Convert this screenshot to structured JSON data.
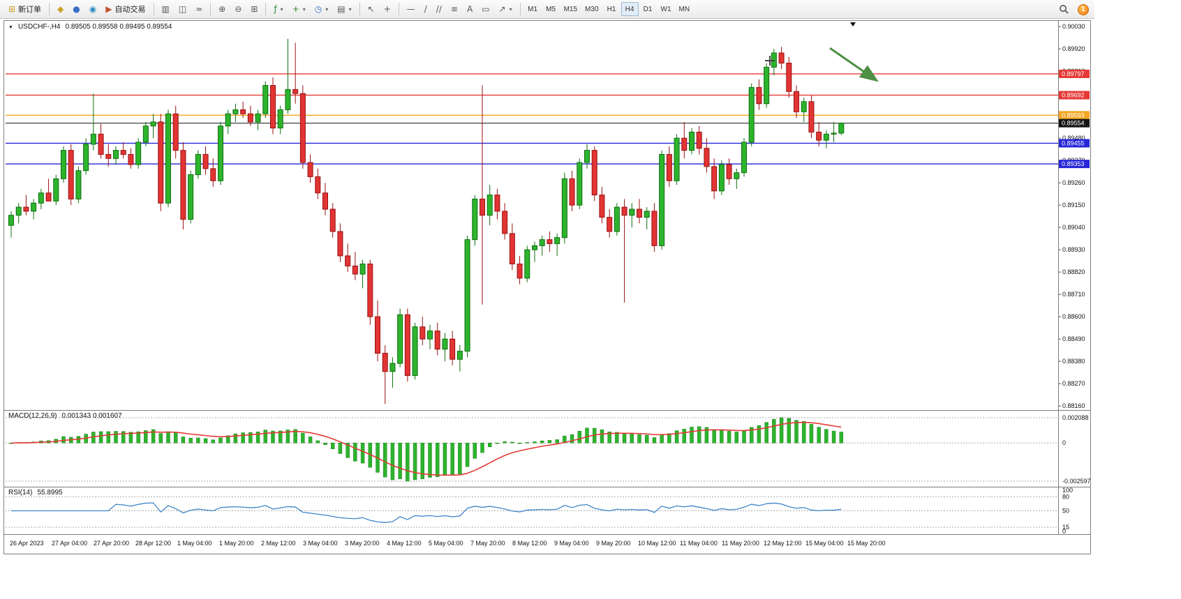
{
  "toolbar": {
    "new_order_label": "新订单",
    "algo_trading_label": "自动交易",
    "timeframes": [
      "M1",
      "M5",
      "M15",
      "M30",
      "H1",
      "H4",
      "D1",
      "W1",
      "MN"
    ],
    "active_timeframe": "H4",
    "notification_count": "1",
    "icons": {
      "new_order": "⊞",
      "metaeditor": "◆",
      "profile": "●",
      "community": "◉",
      "algo_play": "▶",
      "bar_chart": "▥",
      "candle_chart": "◫",
      "line_chart": "≈",
      "zoom_in": "⊕",
      "zoom_out": "⊖",
      "tile_windows": "⊞",
      "indicators": "ƒ",
      "new_chart": "+",
      "clock": "◷",
      "templates": "▤",
      "cursor": "↖",
      "crosshair": "+",
      "hline": "—",
      "trendline": "/",
      "channel": "//",
      "fibonacci": "≡",
      "text_tool": "A",
      "label_tool": "▭",
      "arrows": "↗",
      "caret": "▾"
    }
  },
  "chart": {
    "collapse_icon": "▼",
    "symbol_header": "USDCHF-,H4",
    "ohlc_text": "0.89505 0.89558 0.89495 0.89554",
    "macd_label": "MACD(12,26,9)",
    "macd_values": "0.001343 0.001607",
    "rsi_label": "RSI(14)",
    "rsi_value": "55.8995"
  },
  "chart_data": {
    "type": "candlestick",
    "symbol": "USDCHF-",
    "timeframe": "H4",
    "price_axis": {
      "max": 0.9003,
      "min": 0.8816,
      "step": 0.0011,
      "ticks": [
        "0.90030",
        "0.89920",
        "0.89810",
        "0.89700",
        "0.89590",
        "0.89480",
        "0.89370",
        "0.89260",
        "0.89150",
        "0.89040",
        "0.88930",
        "0.88820",
        "0.88710",
        "0.88600",
        "0.88490",
        "0.88380",
        "0.88270",
        "0.88160"
      ]
    },
    "levels": [
      {
        "value": 0.89797,
        "label": "0.89797",
        "color": "#e53935",
        "current": false
      },
      {
        "value": 0.89692,
        "label": "0.89692",
        "color": "#e53935",
        "current": false
      },
      {
        "value": 0.89593,
        "label": "0.89593",
        "color": "#f5a623",
        "current": false
      },
      {
        "value": 0.89554,
        "label": "0.89554",
        "color": "#141414",
        "current": true
      },
      {
        "value": 0.89455,
        "label": "0.89455",
        "color": "#2727d8",
        "current": false
      },
      {
        "value": 0.89353,
        "label": "0.89353",
        "color": "#2727d8",
        "current": false
      }
    ],
    "time_labels": [
      "26 Apr 2023",
      "27 Apr 04:00",
      "27 Apr 20:00",
      "28 Apr 12:00",
      "1 May 04:00",
      "1 May 20:00",
      "2 May 12:00",
      "3 May 04:00",
      "3 May 20:00",
      "4 May 12:00",
      "5 May 04:00",
      "7 May 20:00",
      "8 May 12:00",
      "9 May 04:00",
      "9 May 20:00",
      "10 May 12:00",
      "11 May 04:00",
      "11 May 20:00",
      "12 May 12:00",
      "15 May 04:00",
      "15 May 20:00"
    ],
    "candles": [
      [
        0.8905,
        0.8912,
        0.8899,
        0.891
      ],
      [
        0.891,
        0.8916,
        0.8906,
        0.8914
      ],
      [
        0.8914,
        0.892,
        0.891,
        0.8912
      ],
      [
        0.8912,
        0.8918,
        0.8908,
        0.8916
      ],
      [
        0.8916,
        0.8923,
        0.8913,
        0.8921
      ],
      [
        0.8921,
        0.8928,
        0.8918,
        0.8917
      ],
      [
        0.8917,
        0.893,
        0.8915,
        0.8928
      ],
      [
        0.8928,
        0.8944,
        0.8926,
        0.8942
      ],
      [
        0.8942,
        0.8945,
        0.8915,
        0.8918
      ],
      [
        0.8918,
        0.8934,
        0.8916,
        0.8932
      ],
      [
        0.8932,
        0.8948,
        0.893,
        0.8945
      ],
      [
        0.8945,
        0.897,
        0.8942,
        0.895
      ],
      [
        0.895,
        0.8955,
        0.8938,
        0.894
      ],
      [
        0.894,
        0.8945,
        0.8934,
        0.8938
      ],
      [
        0.8938,
        0.8944,
        0.8935,
        0.8942
      ],
      [
        0.8942,
        0.8946,
        0.8938,
        0.894
      ],
      [
        0.894,
        0.8943,
        0.8933,
        0.8935
      ],
      [
        0.8935,
        0.8948,
        0.8933,
        0.8946
      ],
      [
        0.8946,
        0.8956,
        0.8944,
        0.8954
      ],
      [
        0.8954,
        0.896,
        0.8948,
        0.8956
      ],
      [
        0.8956,
        0.896,
        0.8912,
        0.8916
      ],
      [
        0.8916,
        0.8962,
        0.8914,
        0.896
      ],
      [
        0.896,
        0.8964,
        0.8938,
        0.8942
      ],
      [
        0.8942,
        0.8946,
        0.8903,
        0.8908
      ],
      [
        0.8908,
        0.8932,
        0.8906,
        0.893
      ],
      [
        0.893,
        0.8942,
        0.8928,
        0.894
      ],
      [
        0.894,
        0.8944,
        0.893,
        0.8933
      ],
      [
        0.8933,
        0.8938,
        0.8924,
        0.8927
      ],
      [
        0.8927,
        0.8956,
        0.8925,
        0.8954
      ],
      [
        0.8954,
        0.8962,
        0.895,
        0.896
      ],
      [
        0.896,
        0.8965,
        0.8956,
        0.8962
      ],
      [
        0.8962,
        0.8966,
        0.8958,
        0.896
      ],
      [
        0.896,
        0.8964,
        0.8954,
        0.8956
      ],
      [
        0.8956,
        0.8962,
        0.8952,
        0.896
      ],
      [
        0.896,
        0.8976,
        0.8958,
        0.8974
      ],
      [
        0.8974,
        0.8978,
        0.895,
        0.8953
      ],
      [
        0.8953,
        0.8964,
        0.895,
        0.8962
      ],
      [
        0.8962,
        0.8997,
        0.896,
        0.8972
      ],
      [
        0.8972,
        0.8995,
        0.8965,
        0.897
      ],
      [
        0.897,
        0.8974,
        0.8933,
        0.8936
      ],
      [
        0.8936,
        0.894,
        0.8926,
        0.8929
      ],
      [
        0.8929,
        0.8933,
        0.8918,
        0.8921
      ],
      [
        0.8921,
        0.8926,
        0.891,
        0.8913
      ],
      [
        0.8913,
        0.8916,
        0.8899,
        0.8902
      ],
      [
        0.8902,
        0.8906,
        0.8887,
        0.889
      ],
      [
        0.889,
        0.8896,
        0.8882,
        0.8885
      ],
      [
        0.8885,
        0.8892,
        0.8878,
        0.8881
      ],
      [
        0.8881,
        0.8888,
        0.8874,
        0.8886
      ],
      [
        0.8886,
        0.8888,
        0.8856,
        0.886
      ],
      [
        0.886,
        0.8868,
        0.8838,
        0.8842
      ],
      [
        0.8842,
        0.8846,
        0.8817,
        0.8833
      ],
      [
        0.8833,
        0.884,
        0.8825,
        0.8837
      ],
      [
        0.8837,
        0.8864,
        0.8835,
        0.8861
      ],
      [
        0.8861,
        0.8864,
        0.8828,
        0.8831
      ],
      [
        0.8831,
        0.8857,
        0.8829,
        0.8855
      ],
      [
        0.8855,
        0.886,
        0.8846,
        0.8849
      ],
      [
        0.8849,
        0.8856,
        0.8844,
        0.8853
      ],
      [
        0.8853,
        0.8857,
        0.8841,
        0.8844
      ],
      [
        0.8844,
        0.8852,
        0.8838,
        0.8849
      ],
      [
        0.8849,
        0.8853,
        0.8836,
        0.8839
      ],
      [
        0.8839,
        0.8846,
        0.8833,
        0.8843
      ],
      [
        0.8843,
        0.89,
        0.884,
        0.8898
      ],
      [
        0.8898,
        0.892,
        0.8895,
        0.8918
      ],
      [
        0.8918,
        0.8974,
        0.8866,
        0.891
      ],
      [
        0.891,
        0.8925,
        0.8905,
        0.892
      ],
      [
        0.892,
        0.8923,
        0.8908,
        0.8912
      ],
      [
        0.8912,
        0.8916,
        0.8898,
        0.8901
      ],
      [
        0.8901,
        0.8906,
        0.8883,
        0.8886
      ],
      [
        0.8886,
        0.889,
        0.8876,
        0.8879
      ],
      [
        0.8879,
        0.8895,
        0.8877,
        0.8893
      ],
      [
        0.8893,
        0.8897,
        0.8887,
        0.8895
      ],
      [
        0.8895,
        0.89,
        0.889,
        0.8898
      ],
      [
        0.8898,
        0.8902,
        0.8892,
        0.8896
      ],
      [
        0.8896,
        0.8901,
        0.889,
        0.8899
      ],
      [
        0.8899,
        0.8931,
        0.8896,
        0.8928
      ],
      [
        0.8928,
        0.8932,
        0.8912,
        0.8915
      ],
      [
        0.8915,
        0.8938,
        0.8913,
        0.8936
      ],
      [
        0.8936,
        0.8945,
        0.8933,
        0.8942
      ],
      [
        0.8942,
        0.8944,
        0.8917,
        0.892
      ],
      [
        0.892,
        0.8924,
        0.8906,
        0.8909
      ],
      [
        0.8909,
        0.8913,
        0.8899,
        0.8902
      ],
      [
        0.8902,
        0.8916,
        0.89,
        0.8914
      ],
      [
        0.8914,
        0.8918,
        0.8867,
        0.891
      ],
      [
        0.891,
        0.8916,
        0.8904,
        0.8913
      ],
      [
        0.8913,
        0.8918,
        0.8906,
        0.8909
      ],
      [
        0.8909,
        0.8914,
        0.8903,
        0.8912
      ],
      [
        0.8912,
        0.8916,
        0.8892,
        0.8895
      ],
      [
        0.8895,
        0.8942,
        0.8893,
        0.894
      ],
      [
        0.894,
        0.8944,
        0.8924,
        0.8927
      ],
      [
        0.8927,
        0.895,
        0.8925,
        0.8948
      ],
      [
        0.8948,
        0.8956,
        0.8938,
        0.8942
      ],
      [
        0.8942,
        0.8953,
        0.894,
        0.8951
      ],
      [
        0.8951,
        0.8954,
        0.894,
        0.8943
      ],
      [
        0.8943,
        0.8948,
        0.8931,
        0.8934
      ],
      [
        0.8934,
        0.8938,
        0.8918,
        0.8922
      ],
      [
        0.8922,
        0.8937,
        0.892,
        0.8935
      ],
      [
        0.8935,
        0.8938,
        0.8925,
        0.8928
      ],
      [
        0.8928,
        0.8933,
        0.8923,
        0.8931
      ],
      [
        0.8931,
        0.8948,
        0.8929,
        0.8946
      ],
      [
        0.8946,
        0.8975,
        0.8944,
        0.8973
      ],
      [
        0.8973,
        0.8977,
        0.8962,
        0.8965
      ],
      [
        0.8965,
        0.8985,
        0.8963,
        0.8983
      ],
      [
        0.8983,
        0.8992,
        0.8979,
        0.899
      ],
      [
        0.899,
        0.8993,
        0.8982,
        0.8985
      ],
      [
        0.8985,
        0.8988,
        0.8968,
        0.8971
      ],
      [
        0.8971,
        0.8974,
        0.8958,
        0.8961
      ],
      [
        0.8961,
        0.8968,
        0.8956,
        0.8966
      ],
      [
        0.8966,
        0.8969,
        0.8948,
        0.8951
      ],
      [
        0.8951,
        0.8956,
        0.8944,
        0.8947
      ],
      [
        0.8947,
        0.8952,
        0.8943,
        0.895
      ],
      [
        0.895,
        0.8956,
        0.8946,
        0.89505
      ],
      [
        0.89505,
        0.89558,
        0.89495,
        0.89554
      ]
    ],
    "macd": {
      "params": "12,26,9",
      "value": 0.001343,
      "signal_value": 0.001607,
      "axis_max": "0.002088",
      "axis_min": "-0.002597"
    },
    "rsi": {
      "period": 14,
      "value": 55.8995,
      "levels": [
        80,
        50,
        15
      ],
      "axis": [
        "100",
        "80",
        "50",
        "15",
        "0"
      ]
    },
    "annotation_arrow": {
      "color": "#4e8f44"
    },
    "colors": {
      "bull": "#2db42d",
      "bull_border": "#0e6e0e",
      "bear": "#e23434",
      "bear_border": "#991111",
      "macd_hist": "#2db42d",
      "macd_signal": "#e53935",
      "rsi_line": "#3d85c8"
    }
  }
}
